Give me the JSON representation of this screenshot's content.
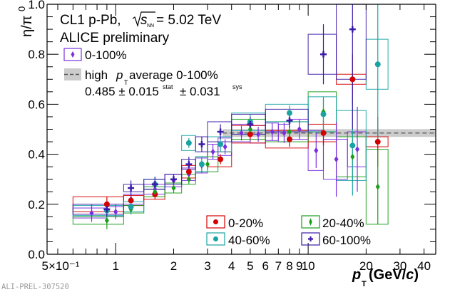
{
  "chart_data": {
    "type": "scatter",
    "title": "CL1 p-Pb, √s_NN = 5.02 TeV",
    "subtitle": "ALICE preliminary",
    "xlabel": "p_T (GeV/c)",
    "ylabel": "η/π⁰",
    "xscale": "log",
    "xlim": [
      0.44,
      46
    ],
    "ylim": [
      0.0,
      1.0
    ],
    "x_ticks": [
      {
        "value": 0.5,
        "label": "5×10⁻¹"
      },
      {
        "value": 1,
        "label": "1"
      },
      {
        "value": 2,
        "label": "2"
      },
      {
        "value": 3,
        "label": "3"
      },
      {
        "value": 4,
        "label": "4"
      },
      {
        "value": 5,
        "label": "5"
      },
      {
        "value": 6,
        "label": "6"
      },
      {
        "value": 7,
        "label": "7"
      },
      {
        "value": 8,
        "label": "8"
      },
      {
        "value": 9,
        "label": "9"
      },
      {
        "value": 10,
        "label": "10"
      },
      {
        "value": 20,
        "label": "20"
      },
      {
        "value": 30,
        "label": "30"
      },
      {
        "value": 40,
        "label": "40"
      }
    ],
    "y_ticks": [
      {
        "value": 0.0,
        "label": "0.0"
      },
      {
        "value": 0.2,
        "label": "0.2"
      },
      {
        "value": 0.4,
        "label": "0.4"
      },
      {
        "value": 0.6,
        "label": "0.6"
      },
      {
        "value": 0.8,
        "label": "0.8"
      },
      {
        "value": 1.0,
        "label": "1.0"
      }
    ],
    "grid": false,
    "watermark": "ALI-PREL-307520",
    "average_band": {
      "label": "high p_T average 0-100%",
      "value": 0.485,
      "stat": 0.015,
      "sys": 0.031,
      "text": "0.485 ± 0.015^stat ± 0.031^sys",
      "x_range": [
        3.6,
        46
      ],
      "color": "#cccccc",
      "line_color": "#666666"
    },
    "legend_top": {
      "position": "top-left",
      "entries": [
        {
          "name": "0-100%",
          "marker": "diamond",
          "color": "#7a2ee0"
        }
      ]
    },
    "legend_bottom": {
      "position": "bottom-right"
    },
    "series": [
      {
        "name": "0-100%",
        "marker": "diamond",
        "color": "#7a2ee0",
        "points": [
          {
            "x": 0.75,
            "y": 0.165,
            "stat": 0.035,
            "xlo": 0.6,
            "xhi": 0.9,
            "sys": 0.02
          },
          {
            "x": 1.0,
            "y": 0.17,
            "stat": 0.03,
            "xlo": 0.9,
            "xhi": 1.1,
            "sys": 0.02
          },
          {
            "x": 1.2,
            "y": 0.22,
            "stat": 0.02,
            "xlo": 1.1,
            "xhi": 1.4,
            "sys": 0.02
          },
          {
            "x": 1.6,
            "y": 0.26,
            "stat": 0.02,
            "xlo": 1.4,
            "xhi": 1.8,
            "sys": 0.02
          },
          {
            "x": 2.0,
            "y": 0.295,
            "stat": 0.02,
            "xlo": 1.8,
            "xhi": 2.2,
            "sys": 0.025
          },
          {
            "x": 2.4,
            "y": 0.32,
            "stat": 0.02,
            "xlo": 2.2,
            "xhi": 2.6,
            "sys": 0.025
          },
          {
            "x": 2.8,
            "y": 0.355,
            "stat": 0.03,
            "xlo": 2.6,
            "xhi": 3.0,
            "sys": 0.03
          },
          {
            "x": 3.2,
            "y": 0.41,
            "stat": 0.03,
            "xlo": 3.0,
            "xhi": 3.4,
            "sys": 0.03
          },
          {
            "x": 3.7,
            "y": 0.43,
            "stat": 0.03,
            "xlo": 3.4,
            "xhi": 4.0,
            "sys": 0.035
          },
          {
            "x": 4.5,
            "y": 0.485,
            "stat": 0.03,
            "xlo": 4.0,
            "xhi": 5.0,
            "sys": 0.035
          },
          {
            "x": 5.5,
            "y": 0.48,
            "stat": 0.03,
            "xlo": 5.0,
            "xhi": 6.0,
            "sys": 0.035
          },
          {
            "x": 6.5,
            "y": 0.49,
            "stat": 0.035,
            "xlo": 6.0,
            "xhi": 7.0,
            "sys": 0.035
          },
          {
            "x": 7.5,
            "y": 0.485,
            "stat": 0.04,
            "xlo": 7.0,
            "xhi": 8.0,
            "sys": 0.035
          },
          {
            "x": 9.0,
            "y": 0.5,
            "stat": 0.04,
            "xlo": 8.0,
            "xhi": 10.0,
            "sys": 0.04
          },
          {
            "x": 11.0,
            "y": 0.415,
            "stat": 0.07,
            "xlo": 10.0,
            "xhi": 12.0,
            "sys": 0.08
          },
          {
            "x": 14.0,
            "y": 0.38,
            "stat": 0.15,
            "xlo": 12.0,
            "xhi": 16.0,
            "sys": 0.08
          },
          {
            "x": 18.0,
            "y": 0.42,
            "stat": 0.17,
            "xlo": 16.0,
            "xhi": 20.0,
            "sys": 0.07
          }
        ]
      },
      {
        "name": "0-20%",
        "marker": "circle",
        "color": "#d40000",
        "points": [
          {
            "x": 0.9,
            "y": 0.2,
            "stat": 0.03,
            "xlo": 0.6,
            "xhi": 1.1,
            "sys": 0.03
          },
          {
            "x": 1.2,
            "y": 0.215,
            "stat": 0.02,
            "xlo": 1.1,
            "xhi": 1.4,
            "sys": 0.02
          },
          {
            "x": 1.6,
            "y": 0.24,
            "stat": 0.02,
            "xlo": 1.4,
            "xhi": 1.8,
            "sys": 0.02
          },
          {
            "x": 2.4,
            "y": 0.33,
            "stat": 0.02,
            "xlo": 2.2,
            "xhi": 2.6,
            "sys": 0.025
          },
          {
            "x": 3.5,
            "y": 0.38,
            "stat": 0.02,
            "xlo": 3.0,
            "xhi": 4.0,
            "sys": 0.03
          },
          {
            "x": 5.0,
            "y": 0.48,
            "stat": 0.02,
            "xlo": 4.0,
            "xhi": 6.0,
            "sys": 0.035
          },
          {
            "x": 8.0,
            "y": 0.46,
            "stat": 0.03,
            "xlo": 6.0,
            "xhi": 10.0,
            "sys": 0.035
          },
          {
            "x": 12.0,
            "y": 0.485,
            "stat": 0.05,
            "xlo": 10.0,
            "xhi": 14.0,
            "sys": 0.035
          },
          {
            "x": 17.0,
            "y": 0.7,
            "stat": 0.1,
            "xlo": 14.0,
            "xhi": 20.0,
            "sys": 0.02
          },
          {
            "x": 23.0,
            "y": 0.45,
            "stat": 0.1,
            "xlo": 20.0,
            "xhi": 26.0,
            "sys": 0.02
          }
        ]
      },
      {
        "name": "20-40%",
        "marker": "diamond",
        "color": "#1a9e1a",
        "points": [
          {
            "x": 0.9,
            "y": 0.135,
            "stat": 0.035,
            "xlo": 0.6,
            "xhi": 1.1,
            "sys": 0.015
          },
          {
            "x": 1.2,
            "y": 0.18,
            "stat": 0.02,
            "xlo": 1.1,
            "xhi": 1.4,
            "sys": 0.015
          },
          {
            "x": 1.6,
            "y": 0.25,
            "stat": 0.02,
            "xlo": 1.4,
            "xhi": 1.8,
            "sys": 0.02
          },
          {
            "x": 2.0,
            "y": 0.265,
            "stat": 0.02,
            "xlo": 1.8,
            "xhi": 2.2,
            "sys": 0.02
          },
          {
            "x": 2.4,
            "y": 0.3,
            "stat": 0.02,
            "xlo": 2.2,
            "xhi": 2.6,
            "sys": 0.02
          },
          {
            "x": 3.0,
            "y": 0.36,
            "stat": 0.02,
            "xlo": 2.6,
            "xhi": 3.4,
            "sys": 0.03
          },
          {
            "x": 5.0,
            "y": 0.5,
            "stat": 0.02,
            "xlo": 4.0,
            "xhi": 6.0,
            "sys": 0.04
          },
          {
            "x": 8.0,
            "y": 0.49,
            "stat": 0.03,
            "xlo": 6.0,
            "xhi": 10.0,
            "sys": 0.04
          },
          {
            "x": 12.0,
            "y": 0.57,
            "stat": 0.05,
            "xlo": 10.0,
            "xhi": 14.0,
            "sys": 0.08
          },
          {
            "x": 17.0,
            "y": 0.39,
            "stat": 0.1,
            "xlo": 14.0,
            "xhi": 20.0,
            "sys": 0.08
          },
          {
            "x": 23.0,
            "y": 0.27,
            "stat": 0.15,
            "xlo": 20.0,
            "xhi": 26.0,
            "sys": 0.15
          }
        ]
      },
      {
        "name": "40-60%",
        "marker": "circle",
        "color": "#1aa3a3",
        "points": [
          {
            "x": 0.9,
            "y": 0.175,
            "stat": 0.035,
            "xlo": 0.6,
            "xhi": 1.1,
            "sys": 0.02
          },
          {
            "x": 1.2,
            "y": 0.19,
            "stat": 0.03,
            "xlo": 1.1,
            "xhi": 1.4,
            "sys": 0.02
          },
          {
            "x": 1.6,
            "y": 0.28,
            "stat": 0.03,
            "xlo": 1.4,
            "xhi": 1.8,
            "sys": 0.02
          },
          {
            "x": 2.4,
            "y": 0.445,
            "stat": 0.02,
            "xlo": 2.2,
            "xhi": 2.6,
            "sys": 0.03
          },
          {
            "x": 2.8,
            "y": 0.36,
            "stat": 0.03,
            "xlo": 2.6,
            "xhi": 3.0,
            "sys": 0.03
          },
          {
            "x": 3.5,
            "y": 0.44,
            "stat": 0.03,
            "xlo": 3.0,
            "xhi": 4.0,
            "sys": 0.03
          },
          {
            "x": 5.0,
            "y": 0.53,
            "stat": 0.03,
            "xlo": 4.0,
            "xhi": 6.0,
            "sys": 0.035
          },
          {
            "x": 8.0,
            "y": 0.565,
            "stat": 0.03,
            "xlo": 6.0,
            "xhi": 10.0,
            "sys": 0.035
          },
          {
            "x": 12.0,
            "y": 0.56,
            "stat": 0.07,
            "xlo": 10.0,
            "xhi": 14.0,
            "sys": 0.07
          },
          {
            "x": 17.0,
            "y": 0.435,
            "stat": 0.2,
            "xlo": 14.0,
            "xhi": 20.0,
            "sys": 0.14
          },
          {
            "x": 23.0,
            "y": 0.76,
            "stat": 0.3,
            "xlo": 20.0,
            "xhi": 26.0,
            "sys": 0.1
          }
        ]
      },
      {
        "name": "60-100%",
        "marker": "cross",
        "color": "#3a1aa8",
        "points": [
          {
            "x": 0.9,
            "y": 0.18,
            "stat": 0.03,
            "xlo": 0.6,
            "xhi": 1.1,
            "sys": 0.02
          },
          {
            "x": 1.2,
            "y": 0.265,
            "stat": 0.03,
            "xlo": 1.1,
            "xhi": 1.4,
            "sys": 0.015
          },
          {
            "x": 1.6,
            "y": 0.28,
            "stat": 0.03,
            "xlo": 1.4,
            "xhi": 1.8,
            "sys": 0.02
          },
          {
            "x": 2.0,
            "y": 0.3,
            "stat": 0.02,
            "xlo": 1.8,
            "xhi": 2.2,
            "sys": 0.02
          },
          {
            "x": 2.4,
            "y": 0.36,
            "stat": 0.03,
            "xlo": 2.2,
            "xhi": 2.6,
            "sys": 0.02
          },
          {
            "x": 2.8,
            "y": 0.44,
            "stat": 0.03,
            "xlo": 2.6,
            "xhi": 3.0,
            "sys": 0.03
          },
          {
            "x": 3.5,
            "y": 0.49,
            "stat": 0.03,
            "xlo": 3.0,
            "xhi": 4.0,
            "sys": 0.04
          },
          {
            "x": 5.0,
            "y": 0.52,
            "stat": 0.03,
            "xlo": 4.0,
            "xhi": 6.0,
            "sys": 0.04
          },
          {
            "x": 8.0,
            "y": 0.535,
            "stat": 0.03,
            "xlo": 6.0,
            "xhi": 10.0,
            "sys": 0.045
          },
          {
            "x": 12.0,
            "y": 0.8,
            "stat": 0.12,
            "xlo": 10.0,
            "xhi": 14.0,
            "sys": 0.08
          },
          {
            "x": 17.0,
            "y": 0.9,
            "stat": 0.4,
            "xlo": 14.0,
            "xhi": 20.0,
            "sys": 0.2
          }
        ]
      }
    ]
  },
  "labels": {
    "line1_prefix": "CL1 p-Pb, ",
    "line1_s": "s",
    "line1_nn": "NN",
    "line1_suffix": " = 5.02 TeV",
    "line2": "ALICE preliminary",
    "legend_0_100": "0-100%",
    "avg_prefix": "high ",
    "avg_p": "p",
    "avg_T": "T",
    "avg_suffix": " average 0-100%",
    "avg_val": "0.485 ± 0.015",
    "avg_stat": "stat",
    "avg_mid": " ± 0.031",
    "avg_sys": "sys",
    "leg_0_20": "0-20%",
    "leg_20_40": "20-40%",
    "leg_40_60": "40-60%",
    "leg_60_100": "60-100%",
    "ylabel_eta": "η/π",
    "ylabel_sup": "0",
    "xlabel_p": "p",
    "xlabel_T": "T",
    "xlabel_unit_a": " (GeV/",
    "xlabel_unit_c": "c",
    "xlabel_unit_b": ")",
    "watermark": "ALI-PREL-307520"
  }
}
